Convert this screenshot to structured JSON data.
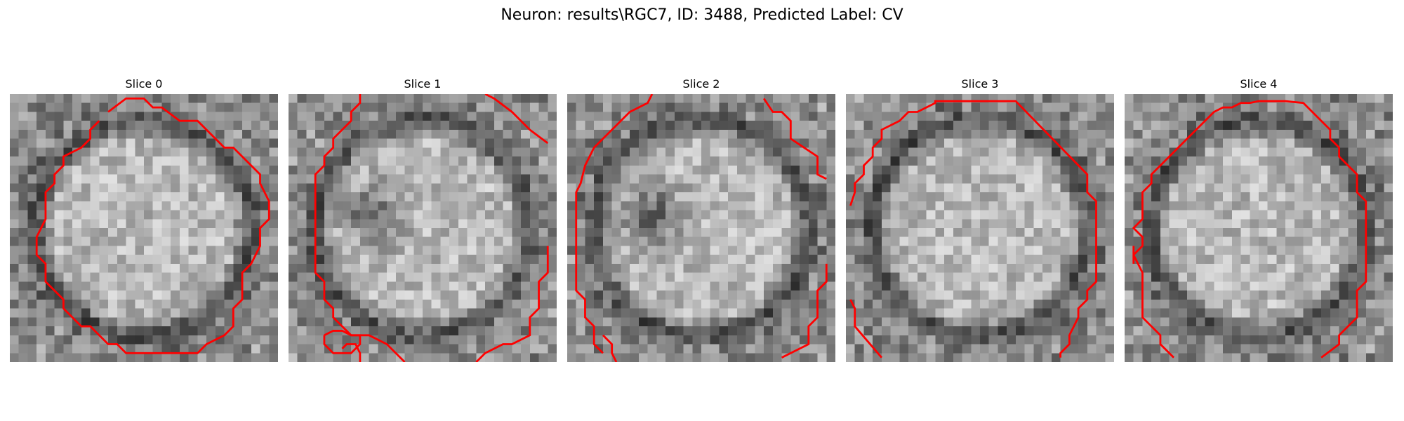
{
  "figure": {
    "title": "Neuron: results\\RGC7, ID: 3488, Predicted Label: CV",
    "contour_color": "#ff0000",
    "colormap": "gray",
    "panels": [
      {
        "label": "Slice 0",
        "dark_center": false
      },
      {
        "label": "Slice 1",
        "dark_center": true
      },
      {
        "label": "Slice 2",
        "dark_center": true
      },
      {
        "label": "Slice 3",
        "dark_center": false
      },
      {
        "label": "Slice 4",
        "dark_center": false
      }
    ]
  }
}
